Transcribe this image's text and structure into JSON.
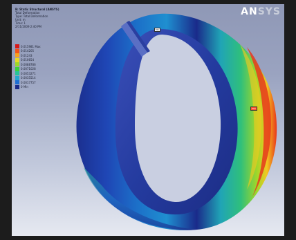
{
  "viewport": {
    "info_lines": [
      "B: Static Structural (ANSYS)",
      "Total Deformation",
      "Type: Total Deformation",
      "Unit: m",
      "Time: 1",
      "2/11/2009 2:40 PM"
    ],
    "legend": [
      {
        "value": "0.015981 Max",
        "color": "#d81818"
      },
      {
        "value": "0.014205",
        "color": "#f2541a"
      },
      {
        "value": "0.01243",
        "color": "#f7a21e"
      },
      {
        "value": "0.010654",
        "color": "#e8da24"
      },
      {
        "value": "0.0088786",
        "color": "#9ed72a"
      },
      {
        "value": "0.0071028",
        "color": "#3bd13c"
      },
      {
        "value": "0.0053271",
        "color": "#26c49a"
      },
      {
        "value": "0.0035514",
        "color": "#22a8cf"
      },
      {
        "value": "0.0017757",
        "color": "#1f6fd4"
      },
      {
        "value": "0 Min",
        "color": "#1a2a8a"
      }
    ],
    "logo_main": "AN",
    "logo_rest": "SYS",
    "probe_min": "Min",
    "probe_max": "Max"
  }
}
